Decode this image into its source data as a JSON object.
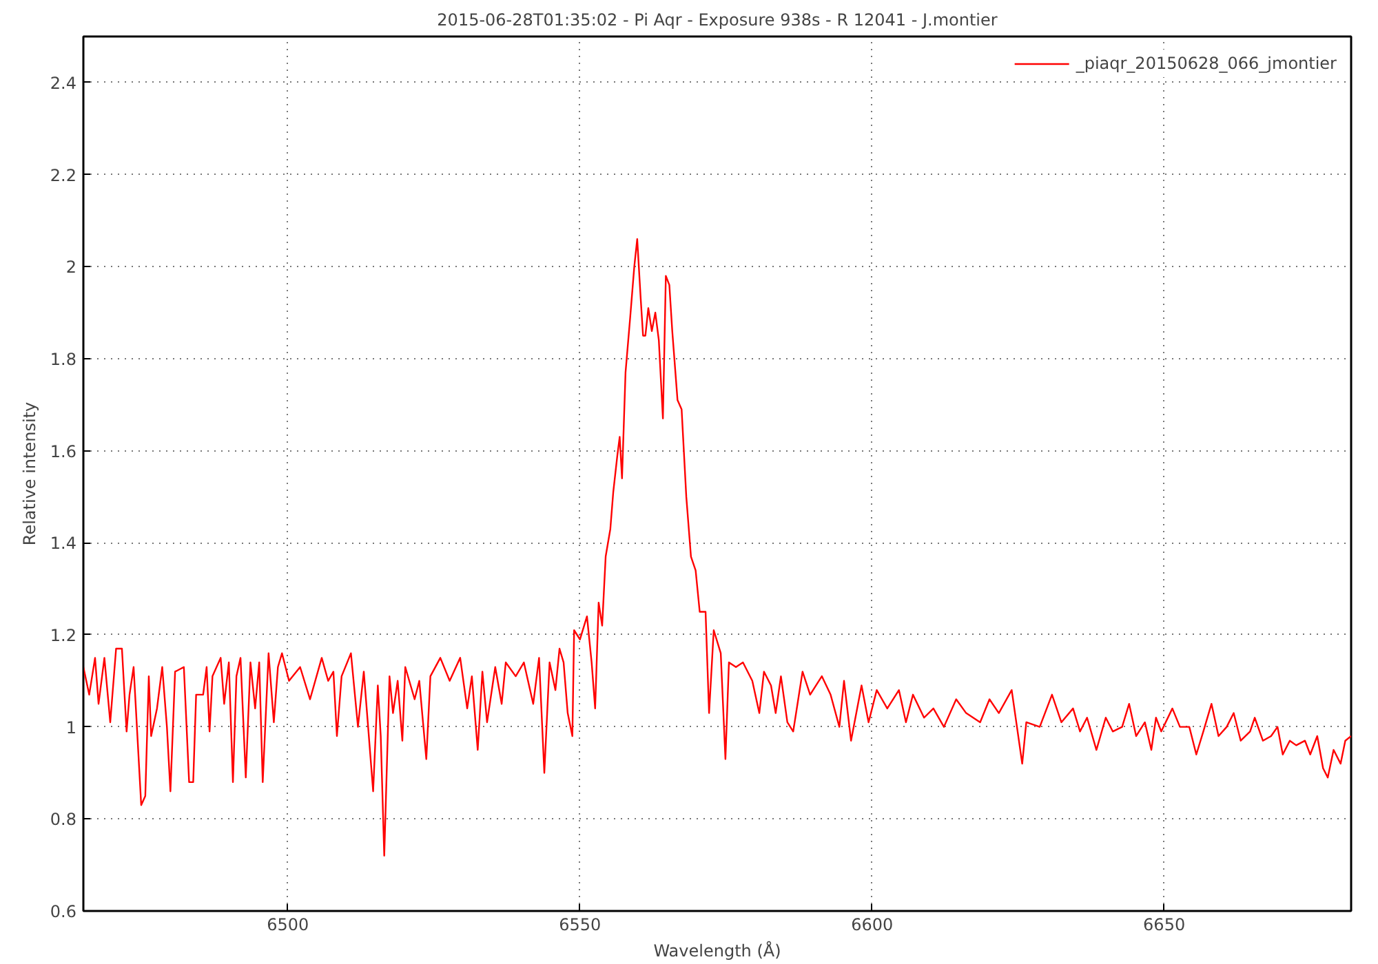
{
  "chart_data": {
    "type": "line",
    "title": "2015-06-28T01:35:02 - Pi Aqr - Exposure 938s - R 12041 - J.montier",
    "xlabel": "Wavelength (Å)",
    "ylabel": "Relative intensity",
    "xlim": [
      6465,
      6682
    ],
    "ylim": [
      0.6,
      2.5
    ],
    "xticks": [
      6500,
      6550,
      6600,
      6650
    ],
    "yticks": [
      0.6,
      0.8,
      1,
      1.2,
      1.4,
      1.6,
      1.8,
      2,
      2.2,
      2.4
    ],
    "grid": true,
    "legend": "top right",
    "marker": "none",
    "line_style": "solid",
    "series": [
      {
        "name": "_piaqr_20150628_066_jmontier",
        "color": "#ff0000",
        "x": [
          6465.0,
          6466.0,
          6467.0,
          6467.6,
          6468.6,
          6469.6,
          6470.6,
          6471.6,
          6472.4,
          6472.9,
          6473.6,
          6474.9,
          6475.6,
          6476.2,
          6476.6,
          6477.6,
          6478.5,
          6479.3,
          6479.9,
          6480.7,
          6482.2,
          6483.1,
          6483.8,
          6484.3,
          6485.5,
          6486.1,
          6486.6,
          6487.1,
          6488.5,
          6489.1,
          6489.9,
          6490.6,
          6491.2,
          6491.9,
          6492.8,
          6493.6,
          6494.4,
          6495.1,
          6495.7,
          6496.7,
          6497.6,
          6498.3,
          6499.0,
          6500.2,
          6502.1,
          6503.8,
          6505.8,
          6506.9,
          6507.8,
          6508.4,
          6509.2,
          6510.8,
          6512.0,
          6513.0,
          6514.6,
          6515.4,
          6515.9,
          6516.5,
          6517.4,
          6518.0,
          6518.8,
          6519.6,
          6520.1,
          6521.7,
          6522.5,
          6523.7,
          6524.4,
          6526.1,
          6527.7,
          6529.5,
          6530.7,
          6531.5,
          6532.5,
          6533.3,
          6534.1,
          6535.5,
          6536.6,
          6537.3,
          6539.0,
          6540.4,
          6542.0,
          6543.0,
          6543.9,
          6544.8,
          6545.8,
          6546.5,
          6547.2,
          6547.9,
          6548.7,
          6549.0,
          6550.0,
          6551.2,
          6552.0,
          6552.6,
          6553.2,
          6553.8,
          6554.4,
          6555.2,
          6555.7,
          6556.4,
          6556.8,
          6557.2,
          6557.8,
          6558.6,
          6559.3,
          6559.8,
          6560.4,
          6560.8,
          6561.2,
          6561.7,
          6562.3,
          6562.9,
          6563.5,
          6564.2,
          6564.7,
          6565.3,
          6565.8,
          6566.7,
          6567.4,
          6568.2,
          6569.0,
          6569.8,
          6570.5,
          6571.5,
          6572.1,
          6572.9,
          6574.1,
          6574.9,
          6575.5,
          6576.7,
          6577.9,
          6579.5,
          6580.7,
          6581.5,
          6582.7,
          6583.5,
          6584.4,
          6585.5,
          6586.5,
          6588.1,
          6589.4,
          6591.4,
          6592.9,
          6594.4,
          6595.2,
          6596.4,
          6598.2,
          6599.4,
          6600.8,
          6602.6,
          6604.6,
          6605.8,
          6607.0,
          6608.9,
          6610.5,
          6612.3,
          6614.4,
          6616.1,
          6618.5,
          6620.1,
          6621.7,
          6623.9,
          6625.7,
          6626.4,
          6628.7,
          6630.8,
          6632.4,
          6634.4,
          6635.6,
          6636.8,
          6638.4,
          6640.0,
          6641.2,
          6642.8,
          6644.0,
          6645.2,
          6646.7,
          6647.8,
          6648.6,
          6649.5,
          6651.4,
          6652.7,
          6654.3,
          6655.5,
          6656.7,
          6658.1,
          6659.3,
          6660.7,
          6661.9,
          6663.1,
          6664.7,
          6665.5,
          6666.9,
          6668.3,
          6669.4,
          6670.3,
          6671.5,
          6672.6,
          6674.1,
          6675.0,
          6676.2,
          6677.2,
          6678.0,
          6679.0,
          6680.2,
          6681.0,
          6682.0
        ],
        "values": [
          1.13,
          1.07,
          1.15,
          1.05,
          1.15,
          1.01,
          1.17,
          1.17,
          0.99,
          1.07,
          1.13,
          0.83,
          0.85,
          1.11,
          0.98,
          1.04,
          1.13,
          1.0,
          0.86,
          1.12,
          1.13,
          0.88,
          0.88,
          1.07,
          1.07,
          1.13,
          0.99,
          1.11,
          1.15,
          1.05,
          1.14,
          0.88,
          1.11,
          1.15,
          0.89,
          1.14,
          1.04,
          1.14,
          0.88,
          1.16,
          1.01,
          1.13,
          1.16,
          1.1,
          1.13,
          1.06,
          1.15,
          1.1,
          1.12,
          0.98,
          1.11,
          1.16,
          1.0,
          1.12,
          0.86,
          1.09,
          0.98,
          0.72,
          1.11,
          1.03,
          1.1,
          0.97,
          1.13,
          1.06,
          1.1,
          0.93,
          1.11,
          1.15,
          1.1,
          1.15,
          1.04,
          1.11,
          0.95,
          1.12,
          1.01,
          1.13,
          1.05,
          1.14,
          1.11,
          1.14,
          1.05,
          1.15,
          0.9,
          1.14,
          1.08,
          1.17,
          1.14,
          1.03,
          0.98,
          1.21,
          1.19,
          1.24,
          1.14,
          1.04,
          1.27,
          1.22,
          1.37,
          1.43,
          1.51,
          1.59,
          1.63,
          1.54,
          1.77,
          1.89,
          2.0,
          2.06,
          1.93,
          1.85,
          1.85,
          1.91,
          1.86,
          1.9,
          1.84,
          1.67,
          1.98,
          1.96,
          1.86,
          1.71,
          1.69,
          1.5,
          1.37,
          1.34,
          1.25,
          1.25,
          1.03,
          1.21,
          1.16,
          0.93,
          1.14,
          1.13,
          1.14,
          1.1,
          1.03,
          1.12,
          1.09,
          1.03,
          1.11,
          1.01,
          0.99,
          1.12,
          1.07,
          1.11,
          1.07,
          1.0,
          1.1,
          0.97,
          1.09,
          1.01,
          1.08,
          1.04,
          1.08,
          1.01,
          1.07,
          1.02,
          1.04,
          1.0,
          1.06,
          1.03,
          1.01,
          1.06,
          1.03,
          1.08,
          0.92,
          1.01,
          1.0,
          1.07,
          1.01,
          1.04,
          0.99,
          1.02,
          0.95,
          1.02,
          0.99,
          1.0,
          1.05,
          0.98,
          1.01,
          0.95,
          1.02,
          0.99,
          1.04,
          1.0,
          1.0,
          0.94,
          0.99,
          1.05,
          0.98,
          1.0,
          1.03,
          0.97,
          0.99,
          1.02,
          0.97,
          0.98,
          1.0,
          0.94,
          0.97,
          0.96,
          0.97,
          0.94,
          0.98,
          0.91,
          0.89,
          0.95,
          0.92,
          0.97,
          0.98
        ]
      }
    ]
  }
}
